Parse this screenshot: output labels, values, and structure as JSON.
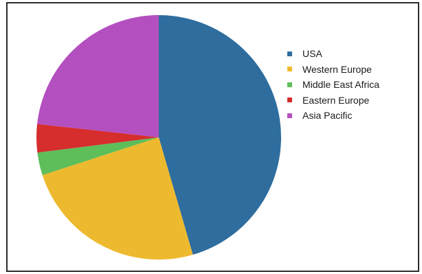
{
  "chart_data": {
    "type": "pie",
    "title": "",
    "grid": false,
    "legend_position": "right",
    "start_angle_deg": 0,
    "direction": "clockwise",
    "categories": [
      "USA",
      "Western Europe",
      "Middle East Africa",
      "Eastern Europe",
      "Asia Pacific"
    ],
    "values": [
      45.5,
      24.5,
      3,
      3.75,
      23.25
    ],
    "colors": [
      "#2E6D9E",
      "#EDB92F",
      "#5DBE5A",
      "#D62D2D",
      "#B44FC0"
    ],
    "series": [
      {
        "values": [
          45.5,
          24.5,
          3,
          3.75,
          23.25
        ]
      }
    ]
  }
}
